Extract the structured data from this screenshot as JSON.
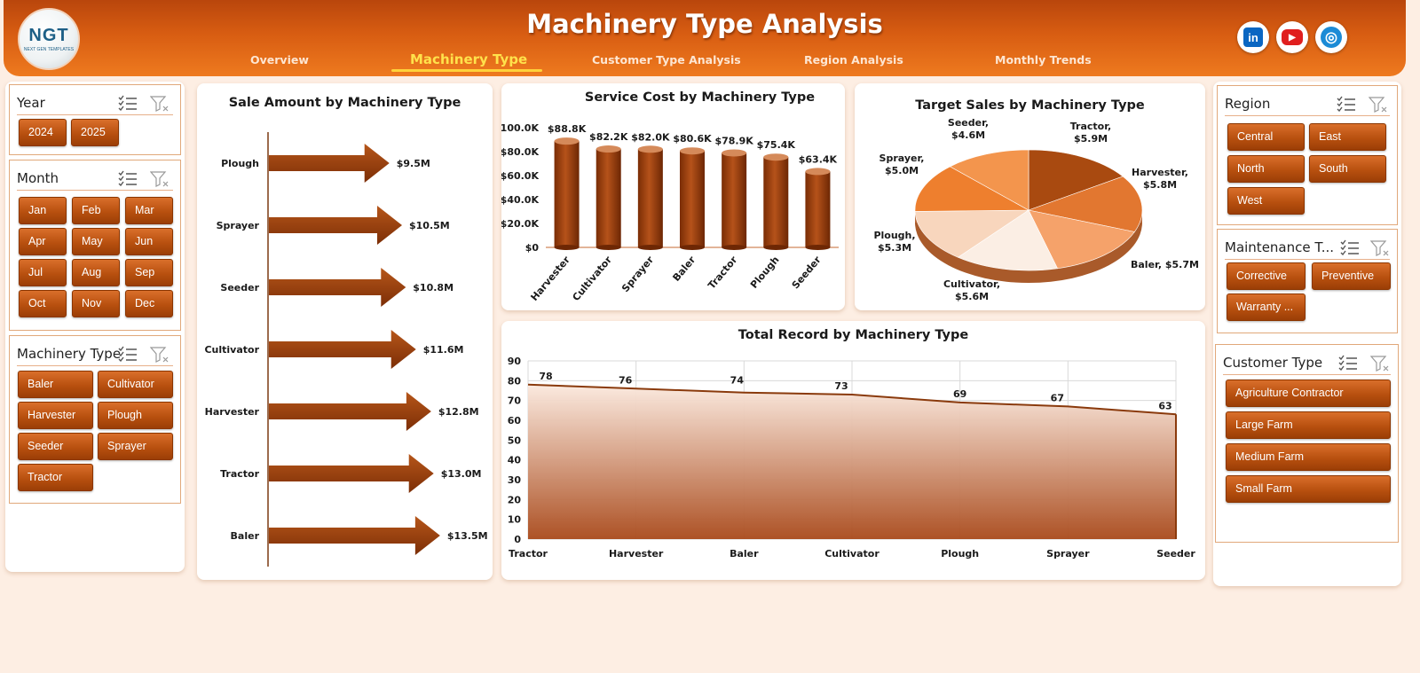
{
  "header": {
    "title": "Machinery Type Analysis",
    "logo_text": "NGT",
    "logo_subtext": "NEXT GEN TEMPLATES",
    "nav": [
      {
        "label": "Overview",
        "active": false
      },
      {
        "label": "Machinery Type",
        "active": true
      },
      {
        "label": "Customer Type Analysis",
        "active": false
      },
      {
        "label": "Region Analysis",
        "active": false
      },
      {
        "label": "Monthly Trends",
        "active": false
      }
    ],
    "social": [
      {
        "name": "linkedin",
        "glyph": "in",
        "color": "#0a66c2"
      },
      {
        "name": "youtube",
        "glyph": "▶",
        "color": "#e01e1e"
      },
      {
        "name": "website",
        "glyph": "◎",
        "color": "#1c8bd6"
      }
    ]
  },
  "colors": {
    "accent": "#d85d12",
    "button": "#b8500f",
    "arrow": "#8f3a0b",
    "line": "#8a3a0c"
  },
  "slicers": {
    "year": {
      "title": "Year",
      "items": [
        "2024",
        "2025"
      ]
    },
    "month": {
      "title": "Month",
      "items": [
        "Jan",
        "Feb",
        "Mar",
        "Apr",
        "May",
        "Jun",
        "Jul",
        "Aug",
        "Sep",
        "Oct",
        "Nov",
        "Dec"
      ]
    },
    "machinery_type": {
      "title": "Machinery Type",
      "items": [
        "Baler",
        "Cultivator",
        "Harvester",
        "Plough",
        "Seeder",
        "Sprayer",
        "Tractor"
      ]
    },
    "region": {
      "title": "Region",
      "items": [
        "Central",
        "East",
        "North",
        "South",
        "West"
      ]
    },
    "maintenance_type": {
      "title": "Maintenance T...",
      "items": [
        "Corrective",
        "Preventive",
        "Warranty ..."
      ]
    },
    "customer_type": {
      "title": "Customer Type",
      "items": [
        "Agriculture Contractor",
        "Large Farm",
        "Medium Farm",
        "Small Farm"
      ]
    }
  },
  "chart_data": [
    {
      "id": "sale_amount",
      "type": "bar",
      "title": "Sale Amount by Machinery Type",
      "categories": [
        "Plough",
        "Sprayer",
        "Seeder",
        "Cultivator",
        "Harvester",
        "Tractor",
        "Baler"
      ],
      "values": [
        9.5,
        10.5,
        10.8,
        11.6,
        12.8,
        13.0,
        13.5
      ],
      "data_labels": [
        "$9.5M",
        "$10.5M",
        "$10.8M",
        "$11.6M",
        "$12.8M",
        "$13.0M",
        "$13.5M"
      ],
      "unit": "$M"
    },
    {
      "id": "service_cost",
      "type": "bar",
      "title": "Service Cost by Machinery Type",
      "categories": [
        "Harvester",
        "Cultivator",
        "Sprayer",
        "Baler",
        "Tractor",
        "Plough",
        "Seeder"
      ],
      "values": [
        88.8,
        82.2,
        82.0,
        80.6,
        78.9,
        75.4,
        63.4
      ],
      "data_labels": [
        "$88.8K",
        "$82.2K",
        "$82.0K",
        "$80.6K",
        "$78.9K",
        "$75.4K",
        "$63.4K"
      ],
      "yticks": [
        "$0",
        "$20.0K",
        "$40.0K",
        "$60.0K",
        "$80.0K",
        "$100.0K"
      ],
      "ylim": [
        0,
        100
      ]
    },
    {
      "id": "target_sales",
      "type": "pie",
      "title": "Target Sales by Machinery Type",
      "slices": [
        {
          "label": "Tractor",
          "value": 5.9,
          "text": "$5.9M",
          "color": "#a94a10"
        },
        {
          "label": "Harvester",
          "value": 5.8,
          "text": "$5.8M",
          "color": "#e27730"
        },
        {
          "label": "Baler",
          "value": 5.7,
          "text": "$5.7M",
          "color": "#f5a26a"
        },
        {
          "label": "Cultivator",
          "value": 5.6,
          "text": "$5.6M",
          "color": "#fbeee4"
        },
        {
          "label": "Plough",
          "value": 5.3,
          "text": "$5.3M",
          "color": "#f8d6bd"
        },
        {
          "label": "Sprayer",
          "value": 5.0,
          "text": "$5.0M",
          "color": "#ee7f2e"
        },
        {
          "label": "Seeder",
          "value": 4.6,
          "text": "$4.6M",
          "color": "#f3954d"
        }
      ]
    },
    {
      "id": "total_record",
      "type": "area",
      "title": "Total Record by Machinery Type",
      "categories": [
        "Tractor",
        "Harvester",
        "Baler",
        "Cultivator",
        "Plough",
        "Sprayer",
        "Seeder"
      ],
      "values": [
        78,
        76,
        74,
        73,
        69,
        67,
        63
      ],
      "yticks": [
        "0",
        "10",
        "20",
        "30",
        "40",
        "50",
        "60",
        "70",
        "80",
        "90"
      ],
      "ylim": [
        0,
        90
      ]
    }
  ]
}
